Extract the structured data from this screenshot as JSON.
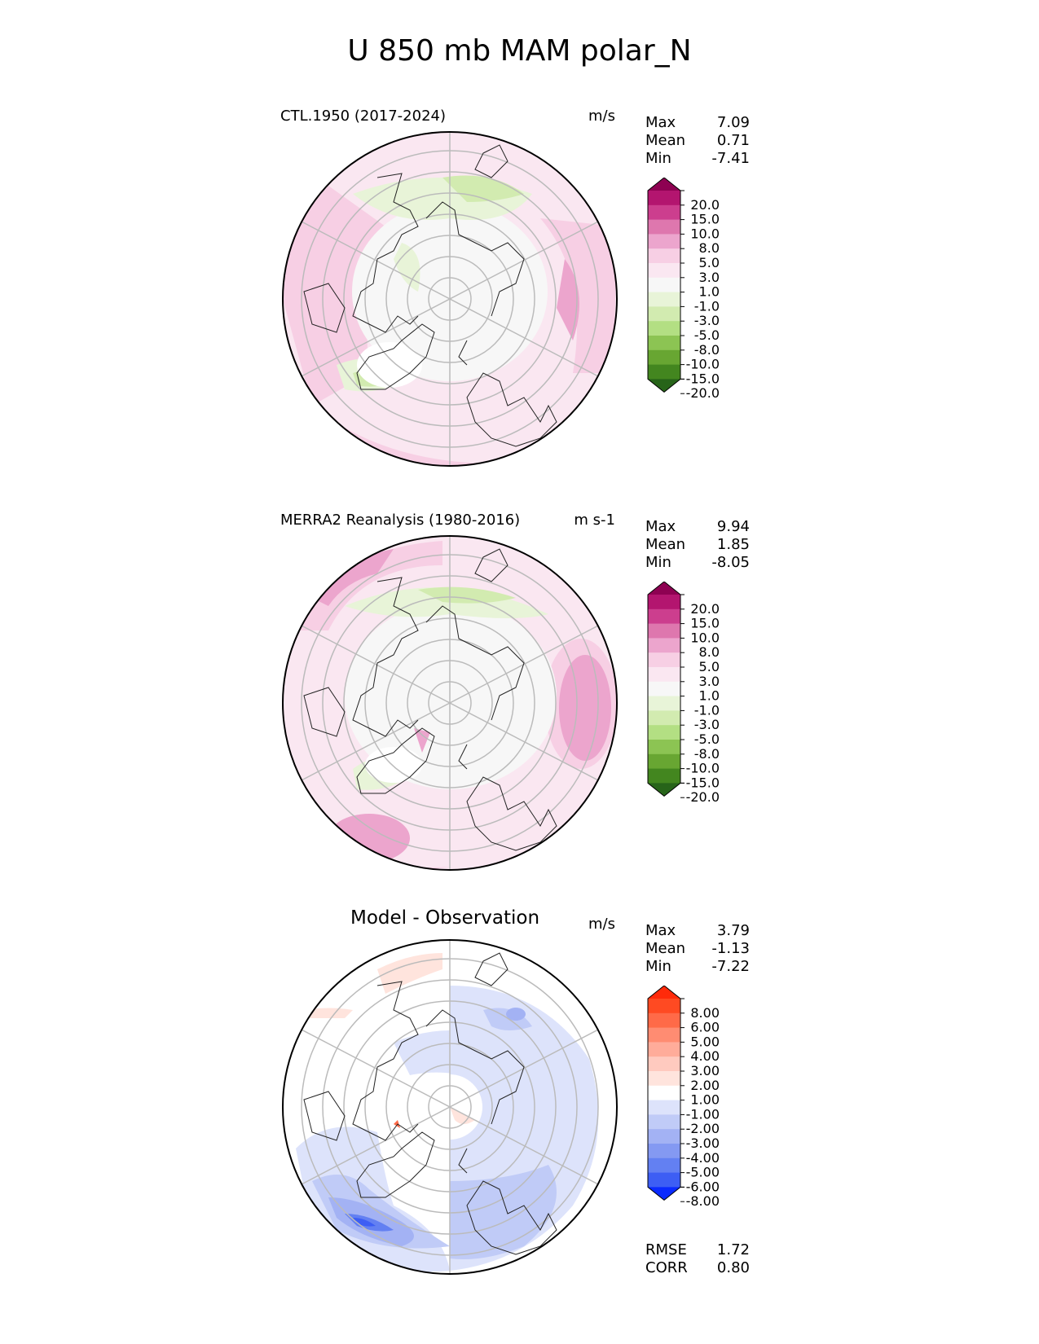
{
  "figure_title": "U 850 mb MAM polar_N",
  "panels": [
    {
      "id": "test",
      "title": "CTL.1950 (2017-2024)",
      "units": "m/s",
      "stats": {
        "max_label": "Max",
        "max": "7.09",
        "mean_label": "Mean",
        "mean": "0.71",
        "min_label": "Min",
        "min": "-7.41"
      },
      "colorbar": "main"
    },
    {
      "id": "reference",
      "title": "MERRA2 Reanalysis (1980-2016)",
      "units": "m s-1",
      "stats": {
        "max_label": "Max",
        "max": "9.94",
        "mean_label": "Mean",
        "mean": "1.85",
        "min_label": "Min",
        "min": "-8.05"
      },
      "colorbar": "main"
    },
    {
      "id": "diff",
      "title": "Model - Observation",
      "units": "m/s",
      "stats": {
        "max_label": "Max",
        "max": "3.79",
        "mean_label": "Mean",
        "mean": "-1.13",
        "min_label": "Min",
        "min": "-7.22"
      },
      "colorbar": "diff"
    }
  ],
  "colorbars": {
    "main": {
      "labels": [
        "20.0",
        "15.0",
        "10.0",
        "8.0",
        "5.0",
        "3.0",
        "1.0",
        "-1.0",
        "-3.0",
        "-5.0",
        "-8.0",
        "-10.0",
        "-15.0",
        "-20.0"
      ],
      "colors": [
        "#8e0152",
        "#b3156f",
        "#cc3e8e",
        "#de77ae",
        "#eca5cd",
        "#f7cfe4",
        "#fae7f1",
        "#f7f7f7",
        "#e8f4d8",
        "#d2ebb0",
        "#b3df83",
        "#8cc453",
        "#68a632",
        "#43861f",
        "#276419"
      ]
    },
    "diff": {
      "labels": [
        "8.00",
        "6.00",
        "5.00",
        "4.00",
        "3.00",
        "2.00",
        "1.00",
        "-1.00",
        "-2.00",
        "-3.00",
        "-4.00",
        "-5.00",
        "-6.00",
        "-8.00"
      ],
      "colors": [
        "#ff2a0a",
        "#ff4a22",
        "#ff6a48",
        "#ff8c72",
        "#ffac9a",
        "#ffcabf",
        "#ffe4dd",
        "#ffffff",
        "#dde3fb",
        "#c0cbf7",
        "#a3b2f4",
        "#8499f2",
        "#6380f2",
        "#3d5ef4",
        "#0a2aff"
      ]
    }
  },
  "summary": {
    "rmse_label": "RMSE",
    "rmse": "1.72",
    "corr_label": "CORR",
    "corr": "0.80"
  }
}
